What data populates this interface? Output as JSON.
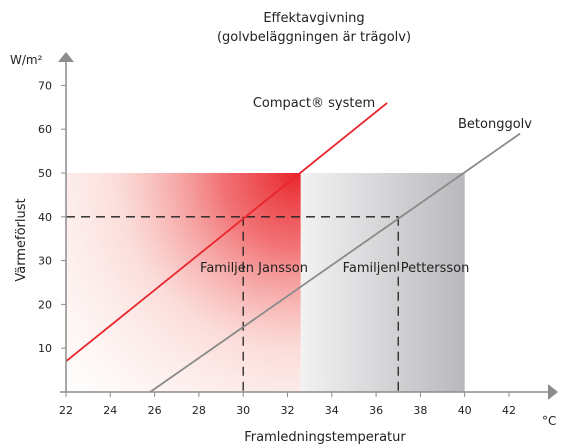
{
  "chart_data": {
    "type": "line",
    "title": "Effektavgivning",
    "subtitle": "(golvbeläggningen är trägolv)",
    "ylabel": "Värmeförlust",
    "yunit": "W/m²",
    "xlabel": "Framledningstemperatur",
    "xunit": "°C",
    "xlim": [
      22,
      44
    ],
    "ylim": [
      0,
      75
    ],
    "x_ticks": [
      22,
      24,
      26,
      28,
      30,
      32,
      34,
      36,
      38,
      40,
      42
    ],
    "y_ticks": [
      10,
      20,
      30,
      40,
      50,
      60,
      70
    ],
    "grid": false,
    "series": [
      {
        "name": "Compact® system",
        "color": "#e8262c",
        "x": [
          22,
          36.5
        ],
        "y": [
          7,
          66
        ]
      },
      {
        "name": "Betonggolv",
        "color": "#8a8a8a",
        "x": [
          25.8,
          42.5
        ],
        "y": [
          0,
          59
        ]
      }
    ],
    "regions": [
      {
        "label": "Familjen Jansson",
        "x": [
          22,
          32.6
        ],
        "y": [
          0,
          50
        ],
        "color": "#ea2a33"
      },
      {
        "label": "Familjen Pettersson",
        "x": [
          32.6,
          40
        ],
        "y": [
          0,
          50
        ],
        "color": "#b0b0b4"
      }
    ],
    "reference": {
      "y": 40,
      "x_jansson": 30,
      "x_pettersson": 37
    }
  }
}
